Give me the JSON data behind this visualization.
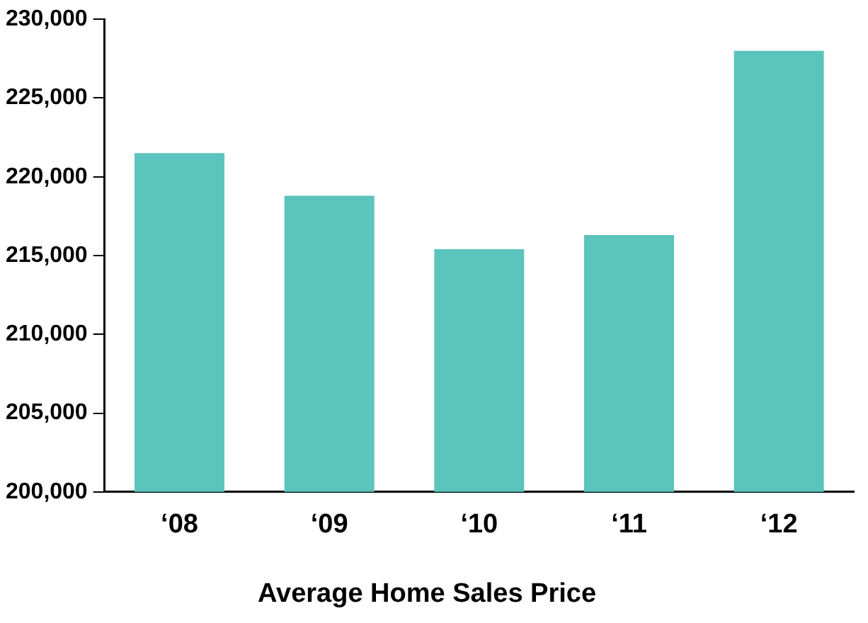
{
  "chart_data": {
    "type": "bar",
    "title": "Average Home Sales Price",
    "categories": [
      "‘08",
      "‘09",
      "‘10",
      "‘11",
      "‘12"
    ],
    "values": [
      221500,
      218800,
      215400,
      216300,
      228000
    ],
    "color": "#5bc4bc",
    "ylim": [
      200000,
      230000
    ],
    "yticks": [
      {
        "value": 200000,
        "label": "200,000"
      },
      {
        "value": 205000,
        "label": "205,000"
      },
      {
        "value": 210000,
        "label": "210,000"
      },
      {
        "value": 215000,
        "label": "215,000"
      },
      {
        "value": 220000,
        "label": "220,000"
      },
      {
        "value": 225000,
        "label": "225,000"
      },
      {
        "value": 230000,
        "label": "230,000"
      }
    ],
    "grid": false,
    "legend": false
  }
}
